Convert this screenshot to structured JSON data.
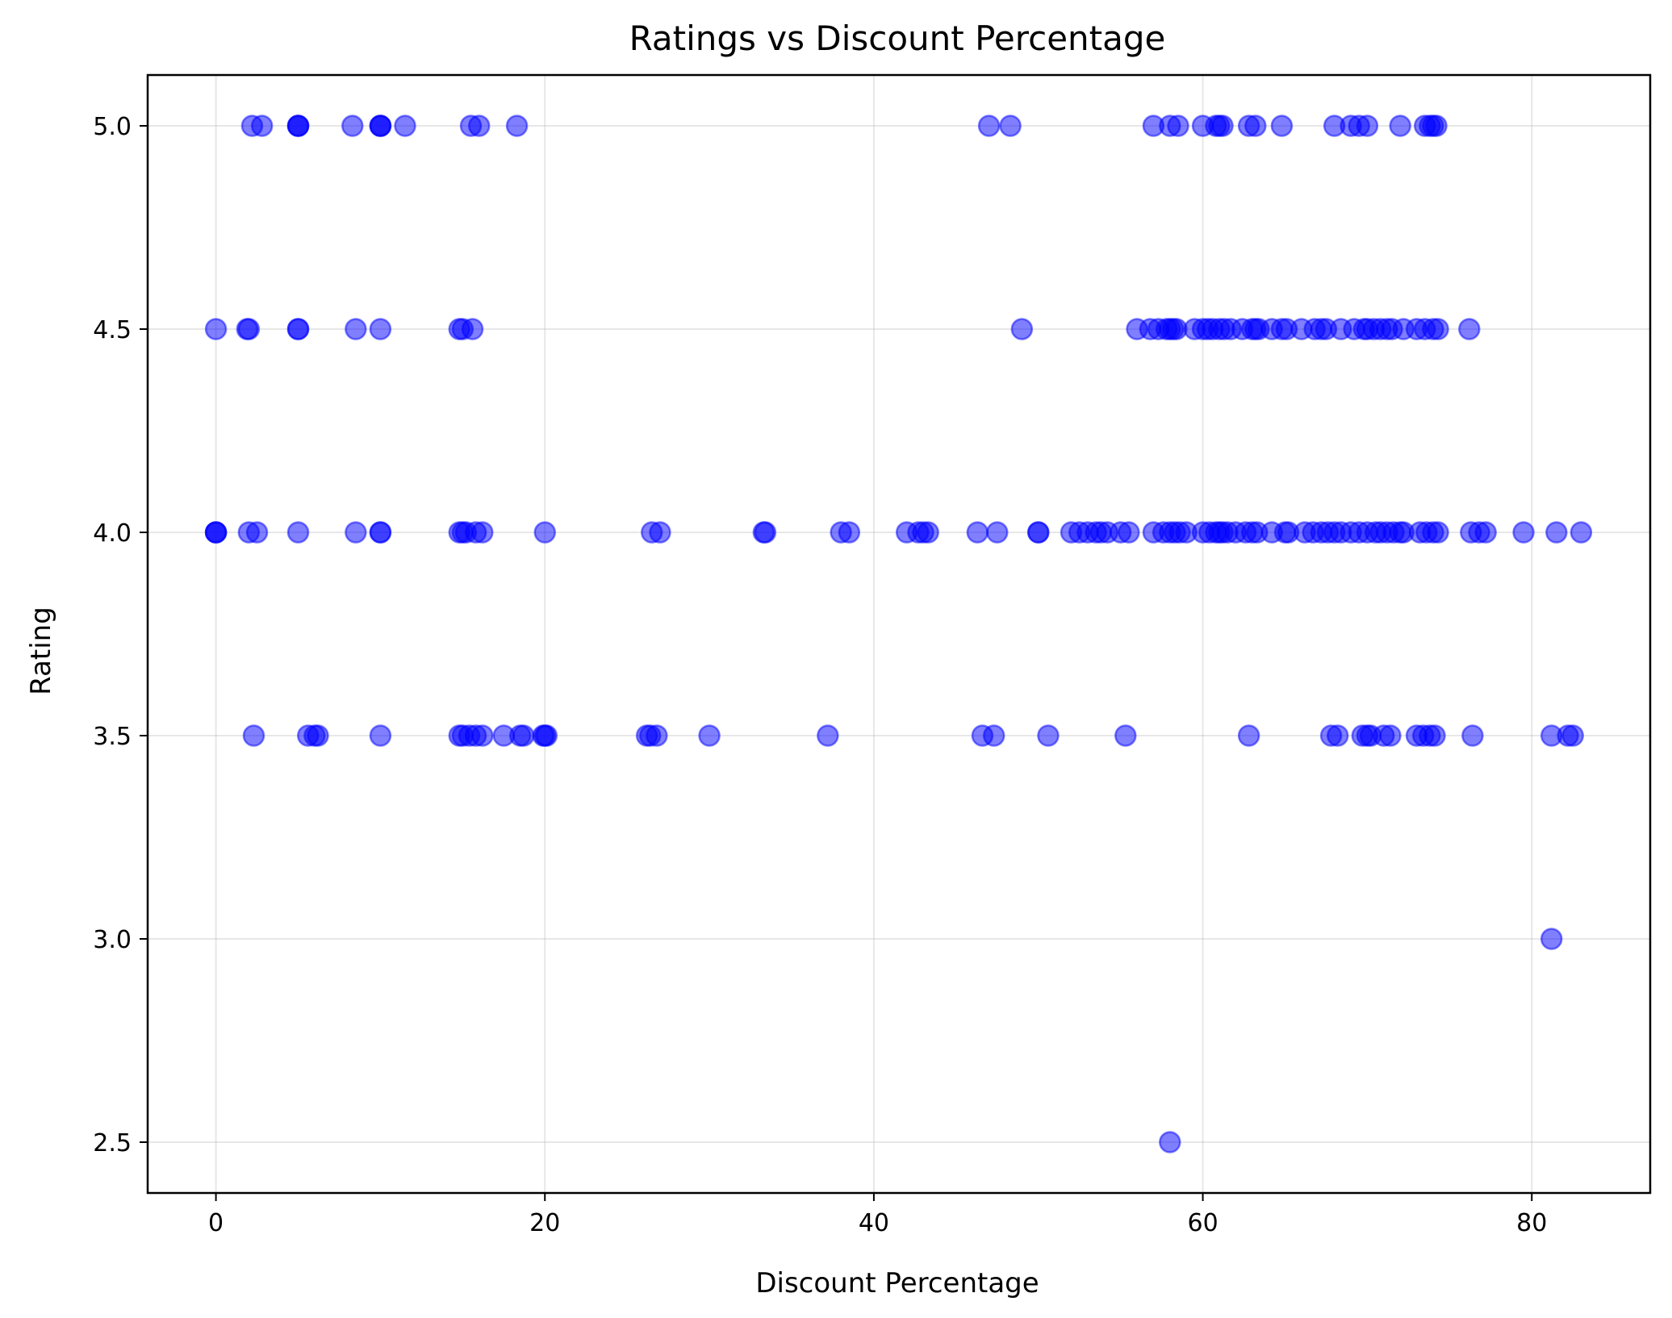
{
  "chart_data": {
    "type": "scatter",
    "title": "Ratings vs Discount Percentage",
    "xlabel": "Discount Percentage",
    "ylabel": "Rating",
    "xlim": [
      -4.15,
      87.2
    ],
    "ylim": [
      2.375,
      5.125
    ],
    "xticks": [
      0,
      20,
      40,
      60,
      80
    ],
    "yticks": [
      2.5,
      3.0,
      3.5,
      4.0,
      4.5,
      5.0
    ],
    "ytick_labels": [
      "2.5",
      "3.0",
      "3.5",
      "4.0",
      "4.5",
      "5.0"
    ],
    "grid": true,
    "marker_color": "#0000ff",
    "marker_alpha": 0.5,
    "points": [
      [
        2.2,
        5.0
      ],
      [
        2.8,
        5.0
      ],
      [
        5,
        5.0
      ],
      [
        5,
        5.0
      ],
      [
        5,
        5.0
      ],
      [
        8.3,
        5.0
      ],
      [
        10,
        5.0
      ],
      [
        10,
        5.0
      ],
      [
        10,
        5.0
      ],
      [
        11.5,
        5.0
      ],
      [
        15.5,
        5.0
      ],
      [
        16,
        5.0
      ],
      [
        18.3,
        5.0
      ],
      [
        47,
        5.0
      ],
      [
        48.3,
        5.0
      ],
      [
        57,
        5.0
      ],
      [
        58,
        5.0
      ],
      [
        58.5,
        5.0
      ],
      [
        60,
        5.0
      ],
      [
        60.8,
        5.0
      ],
      [
        61,
        5.0
      ],
      [
        61.2,
        5.0
      ],
      [
        62.8,
        5.0
      ],
      [
        63.2,
        5.0
      ],
      [
        64.8,
        5.0
      ],
      [
        68,
        5.0
      ],
      [
        69,
        5.0
      ],
      [
        69.5,
        5.0
      ],
      [
        70,
        5.0
      ],
      [
        72,
        5.0
      ],
      [
        73.5,
        5.0
      ],
      [
        73.8,
        5.0
      ],
      [
        74,
        5.0
      ],
      [
        74.2,
        5.0
      ],
      [
        0,
        4.5
      ],
      [
        1.9,
        4.5
      ],
      [
        2,
        4.5
      ],
      [
        5,
        4.5
      ],
      [
        5,
        4.5
      ],
      [
        8.5,
        4.5
      ],
      [
        10,
        4.5
      ],
      [
        14.8,
        4.5
      ],
      [
        15,
        4.5
      ],
      [
        15.6,
        4.5
      ],
      [
        49,
        4.5
      ],
      [
        56,
        4.5
      ],
      [
        56.8,
        4.5
      ],
      [
        57.3,
        4.5
      ],
      [
        57.8,
        4.5
      ],
      [
        58,
        4.5
      ],
      [
        58.2,
        4.5
      ],
      [
        58.4,
        4.5
      ],
      [
        59.5,
        4.5
      ],
      [
        60,
        4.5
      ],
      [
        60.3,
        4.5
      ],
      [
        60.6,
        4.5
      ],
      [
        61,
        4.5
      ],
      [
        61.3,
        4.5
      ],
      [
        61.7,
        4.5
      ],
      [
        62.4,
        4.5
      ],
      [
        63,
        4.5
      ],
      [
        63.2,
        4.5
      ],
      [
        63.4,
        4.5
      ],
      [
        64.2,
        4.5
      ],
      [
        64.8,
        4.5
      ],
      [
        65.1,
        4.5
      ],
      [
        66,
        4.5
      ],
      [
        66.8,
        4.5
      ],
      [
        67.2,
        4.5
      ],
      [
        67.5,
        4.5
      ],
      [
        68.4,
        4.5
      ],
      [
        69.2,
        4.5
      ],
      [
        69.8,
        4.5
      ],
      [
        70,
        4.5
      ],
      [
        70.4,
        4.5
      ],
      [
        70.8,
        4.5
      ],
      [
        71.2,
        4.5
      ],
      [
        71.5,
        4.5
      ],
      [
        72.2,
        4.5
      ],
      [
        73,
        4.5
      ],
      [
        73.5,
        4.5
      ],
      [
        74,
        4.5
      ],
      [
        74.3,
        4.5
      ],
      [
        76.2,
        4.5
      ],
      [
        0,
        4.0
      ],
      [
        0,
        4.0
      ],
      [
        0,
        4.0
      ],
      [
        2,
        4.0
      ],
      [
        2.5,
        4.0
      ],
      [
        5,
        4.0
      ],
      [
        8.5,
        4.0
      ],
      [
        10,
        4.0
      ],
      [
        10,
        4.0
      ],
      [
        14.8,
        4.0
      ],
      [
        15,
        4.0
      ],
      [
        15.2,
        4.0
      ],
      [
        15.8,
        4.0
      ],
      [
        16.2,
        4.0
      ],
      [
        20,
        4.0
      ],
      [
        26.5,
        4.0
      ],
      [
        27,
        4.0
      ],
      [
        33.3,
        4.0
      ],
      [
        33.4,
        4.0
      ],
      [
        38,
        4.0
      ],
      [
        38.5,
        4.0
      ],
      [
        42,
        4.0
      ],
      [
        42.7,
        4.0
      ],
      [
        43,
        4.0
      ],
      [
        43.3,
        4.0
      ],
      [
        46.3,
        4.0
      ],
      [
        47.5,
        4.0
      ],
      [
        50,
        4.0
      ],
      [
        50,
        4.0
      ],
      [
        52,
        4.0
      ],
      [
        52.5,
        4.0
      ],
      [
        53,
        4.0
      ],
      [
        53.5,
        4.0
      ],
      [
        53.8,
        4.0
      ],
      [
        54.2,
        4.0
      ],
      [
        55,
        4.0
      ],
      [
        55.5,
        4.0
      ],
      [
        57,
        4.0
      ],
      [
        57.6,
        4.0
      ],
      [
        58,
        4.0
      ],
      [
        58.3,
        4.0
      ],
      [
        58.6,
        4.0
      ],
      [
        59,
        4.0
      ],
      [
        60,
        4.0
      ],
      [
        60.4,
        4.0
      ],
      [
        60.8,
        4.0
      ],
      [
        61,
        4.0
      ],
      [
        61.2,
        4.0
      ],
      [
        61.5,
        4.0
      ],
      [
        62,
        4.0
      ],
      [
        62.6,
        4.0
      ],
      [
        63,
        4.0
      ],
      [
        63.3,
        4.0
      ],
      [
        64.2,
        4.0
      ],
      [
        65,
        4.0
      ],
      [
        65.2,
        4.0
      ],
      [
        66.2,
        4.0
      ],
      [
        66.7,
        4.0
      ],
      [
        67.2,
        4.0
      ],
      [
        67.6,
        4.0
      ],
      [
        68,
        4.0
      ],
      [
        68.4,
        4.0
      ],
      [
        69,
        4.0
      ],
      [
        69.5,
        4.0
      ],
      [
        70,
        4.0
      ],
      [
        70.5,
        4.0
      ],
      [
        70.8,
        4.0
      ],
      [
        71.2,
        4.0
      ],
      [
        71.6,
        4.0
      ],
      [
        72,
        4.0
      ],
      [
        72.2,
        4.0
      ],
      [
        73.2,
        4.0
      ],
      [
        73.6,
        4.0
      ],
      [
        74,
        4.0
      ],
      [
        74.3,
        4.0
      ],
      [
        76.3,
        4.0
      ],
      [
        76.8,
        4.0
      ],
      [
        77.2,
        4.0
      ],
      [
        79.5,
        4.0
      ],
      [
        81.5,
        4.0
      ],
      [
        83,
        4.0
      ],
      [
        2.3,
        3.5
      ],
      [
        5.6,
        3.5
      ],
      [
        6,
        3.5
      ],
      [
        6.2,
        3.5
      ],
      [
        10,
        3.5
      ],
      [
        14.8,
        3.5
      ],
      [
        15,
        3.5
      ],
      [
        15.4,
        3.5
      ],
      [
        15.8,
        3.5
      ],
      [
        16.2,
        3.5
      ],
      [
        17.5,
        3.5
      ],
      [
        18.5,
        3.5
      ],
      [
        18.7,
        3.5
      ],
      [
        19.9,
        3.5
      ],
      [
        20,
        3.5
      ],
      [
        20.1,
        3.5
      ],
      [
        26.2,
        3.5
      ],
      [
        26.4,
        3.5
      ],
      [
        26.8,
        3.5
      ],
      [
        30,
        3.5
      ],
      [
        37.2,
        3.5
      ],
      [
        46.6,
        3.5
      ],
      [
        47.3,
        3.5
      ],
      [
        50.6,
        3.5
      ],
      [
        55.3,
        3.5
      ],
      [
        62.8,
        3.5
      ],
      [
        67.8,
        3.5
      ],
      [
        68.2,
        3.5
      ],
      [
        69.7,
        3.5
      ],
      [
        70,
        3.5
      ],
      [
        70.2,
        3.5
      ],
      [
        71,
        3.5
      ],
      [
        71.4,
        3.5
      ],
      [
        73,
        3.5
      ],
      [
        73.4,
        3.5
      ],
      [
        73.8,
        3.5
      ],
      [
        74.1,
        3.5
      ],
      [
        76.4,
        3.5
      ],
      [
        81.2,
        3.5
      ],
      [
        82.2,
        3.5
      ],
      [
        82.5,
        3.5
      ],
      [
        81.2,
        3.0
      ],
      [
        58,
        2.5
      ]
    ]
  }
}
